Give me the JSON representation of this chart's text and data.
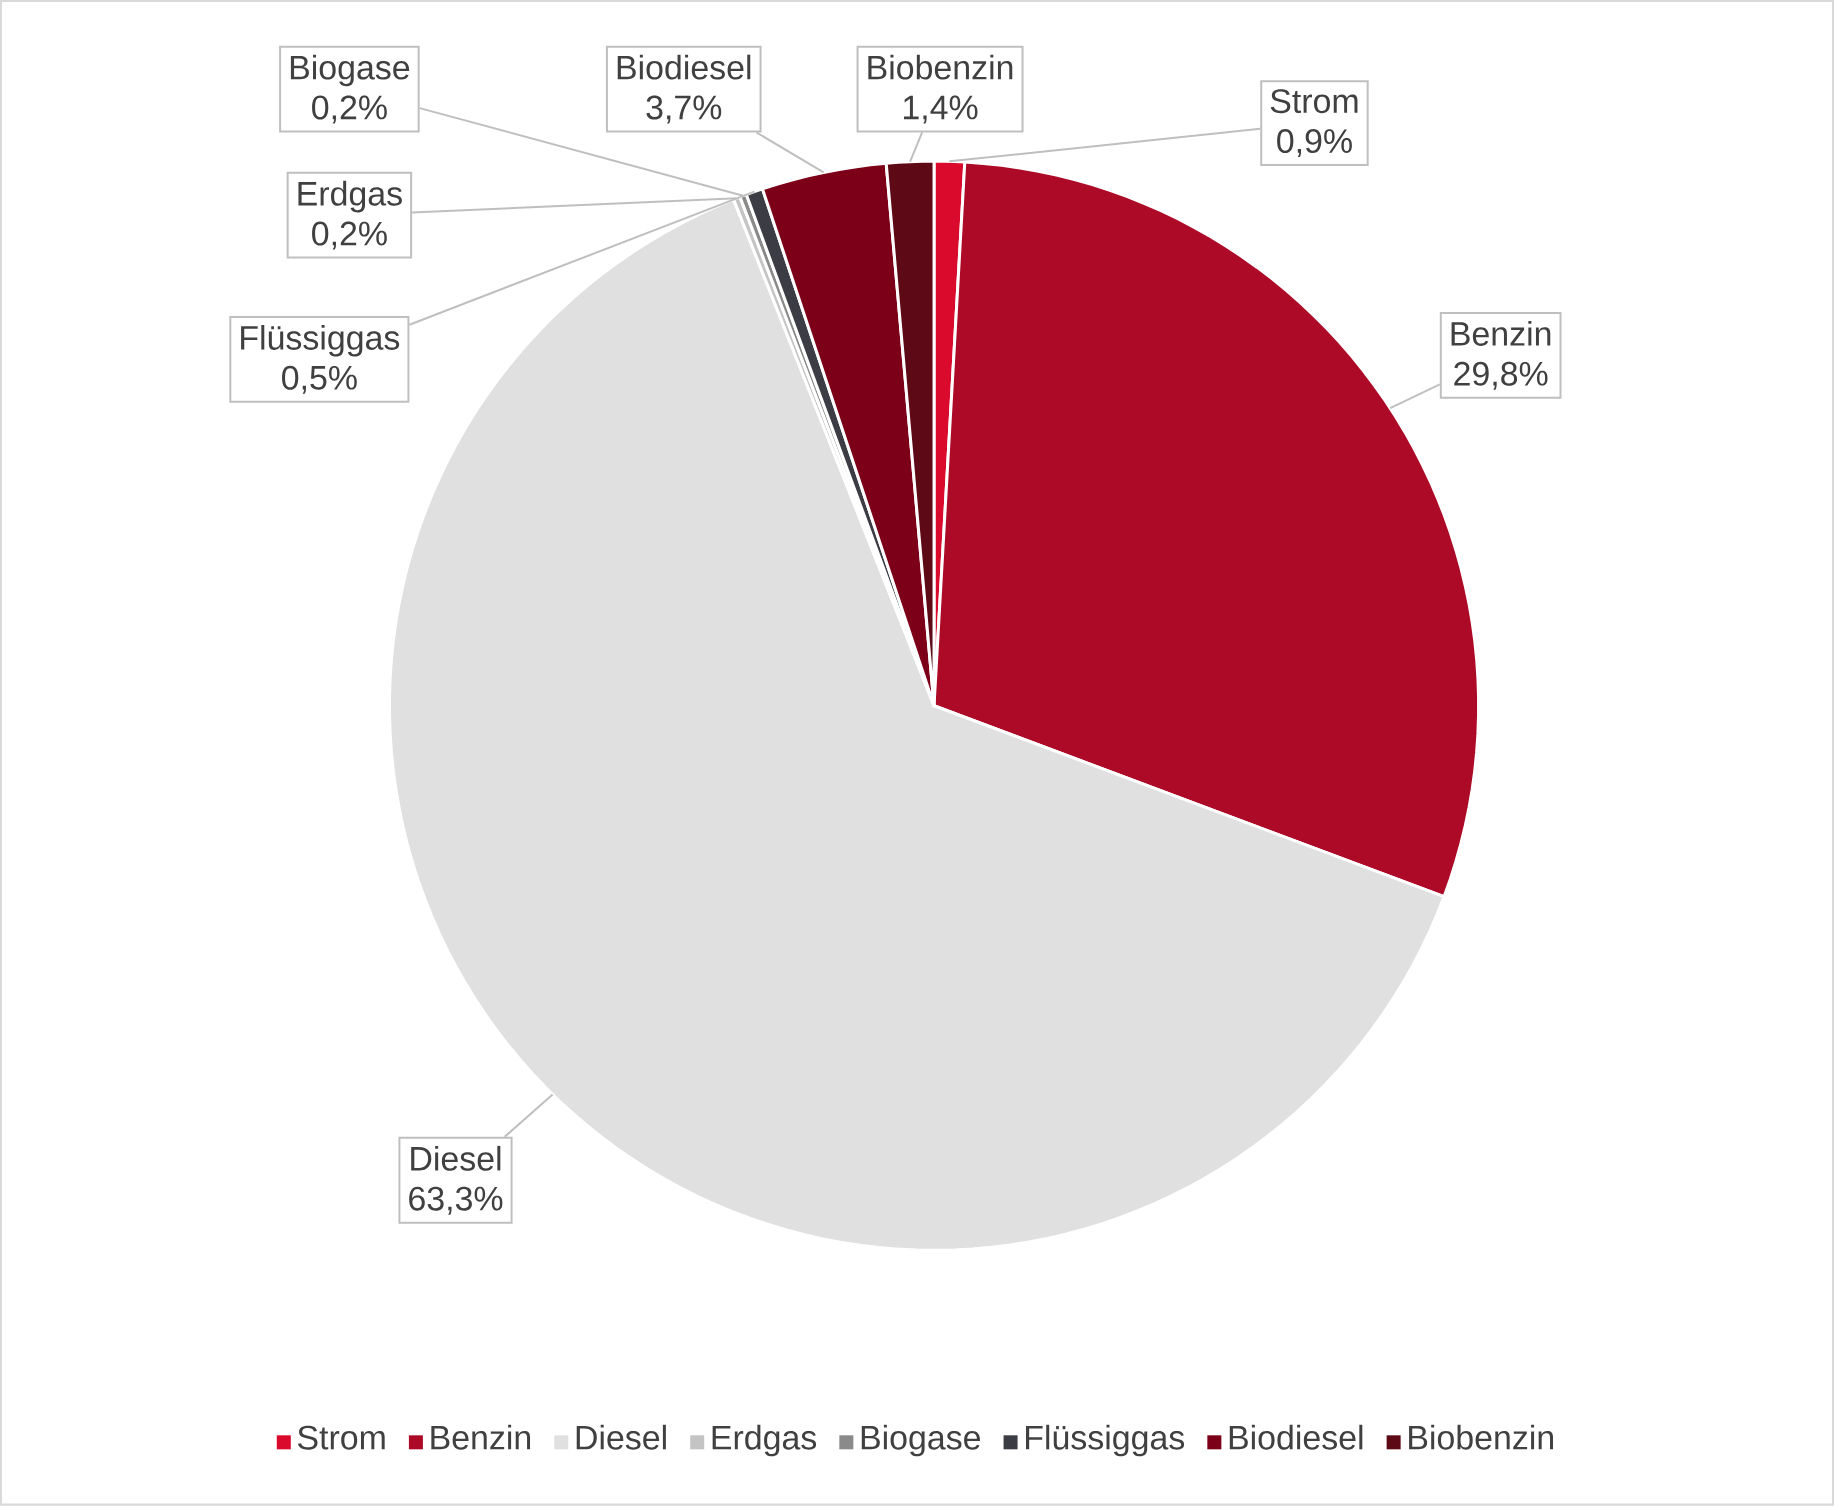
{
  "chart_data": {
    "type": "pie",
    "categories": [
      "Strom",
      "Benzin",
      "Diesel",
      "Erdgas",
      "Biogase",
      "Flüssiggas",
      "Biodiesel",
      "Biobenzin"
    ],
    "values": [
      0.9,
      29.8,
      63.3,
      0.2,
      0.2,
      0.5,
      3.7,
      1.4
    ],
    "value_labels": [
      "0,9%",
      "29,8%",
      "63,3%",
      "0,2%",
      "0,2%",
      "0,5%",
      "3,7%",
      "1,4%"
    ],
    "colors": [
      "#d90a2c",
      "#ad0a28",
      "#e0e0e0",
      "#c4c4c4",
      "#8a8a8a",
      "#3c3c44",
      "#7c0018",
      "#5e0a16"
    ],
    "legend": "bottom"
  }
}
